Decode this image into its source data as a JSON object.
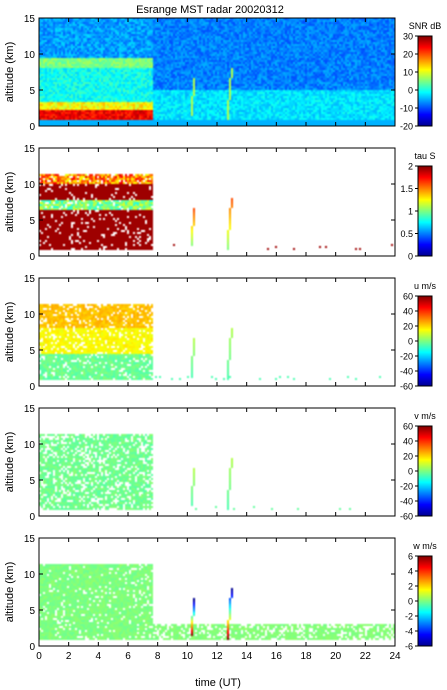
{
  "chart_data": {
    "type": "heatmap",
    "title": "Esrange MST radar 20020312",
    "xlabel": "time (UT)",
    "xlim": [
      0,
      24
    ],
    "x_ticks": [
      "0",
      "2",
      "4",
      "6",
      "8",
      "10",
      "12",
      "14",
      "16",
      "18",
      "20",
      "22",
      "24"
    ],
    "y_ticks": [
      "0",
      "5",
      "10",
      "15"
    ],
    "panels": [
      {
        "id": "snr",
        "ylabel": "altitude (km)",
        "ylim": [
          0,
          15
        ],
        "colorbar_label": "SNR dB",
        "clim": [
          -20,
          30
        ],
        "colorbar_ticks": [
          "-20",
          "-10",
          "0",
          "10",
          "20",
          "30"
        ],
        "description": "full coverage; strong echoes 1-3 km before 07:45 UT; weak elsewhere"
      },
      {
        "id": "tau",
        "ylabel": "altitude (km)",
        "ylim": [
          0,
          15
        ],
        "colorbar_label": "tau S",
        "clim": [
          0,
          2
        ],
        "colorbar_ticks": [
          "0",
          "0.5",
          "1",
          "1.5",
          "2"
        ],
        "description": "mostly saturated (2 s) in 1-10 km before 07:45 UT"
      },
      {
        "id": "u",
        "ylabel": "altitude (km)",
        "ylim": [
          0,
          15
        ],
        "colorbar_label": "u m/s",
        "clim": [
          -60,
          60
        ],
        "colorbar_ticks": [
          "-60",
          "-40",
          "-20",
          "0",
          "20",
          "40",
          "60"
        ],
        "description": "zonal wind ~30-40 m/s near 8-11 km, ~10 m/s lower"
      },
      {
        "id": "v",
        "ylabel": "altitude (km)",
        "ylim": [
          0,
          15
        ],
        "colorbar_label": "v m/s",
        "clim": [
          -60,
          60
        ],
        "colorbar_ticks": [
          "-60",
          "-40",
          "-20",
          "0",
          "20",
          "40",
          "60"
        ],
        "description": "meridional wind near 0 m/s"
      },
      {
        "id": "w",
        "ylabel": "altitude (km)",
        "ylim": [
          0,
          15
        ],
        "colorbar_label": "w m/s",
        "clim": [
          -6,
          6
        ],
        "colorbar_ticks": [
          "-6",
          "-4",
          "-2",
          "0",
          "2",
          "4",
          "6"
        ],
        "description": "vertical wind near 0 m/s; low-level band 1-3 km through the day"
      }
    ],
    "streaks": [
      {
        "t0": 10.25,
        "z0": 1.5,
        "t1": 10.5,
        "z1": 6.5
      },
      {
        "t0": 12.7,
        "z0": 1.0,
        "t1": 13.0,
        "z1": 8.0
      }
    ],
    "colormap": [
      "#00008f",
      "#0000ff",
      "#007fff",
      "#00ffff",
      "#7fff7f",
      "#ffff00",
      "#ff7f00",
      "#ff0000",
      "#7f0000"
    ]
  }
}
